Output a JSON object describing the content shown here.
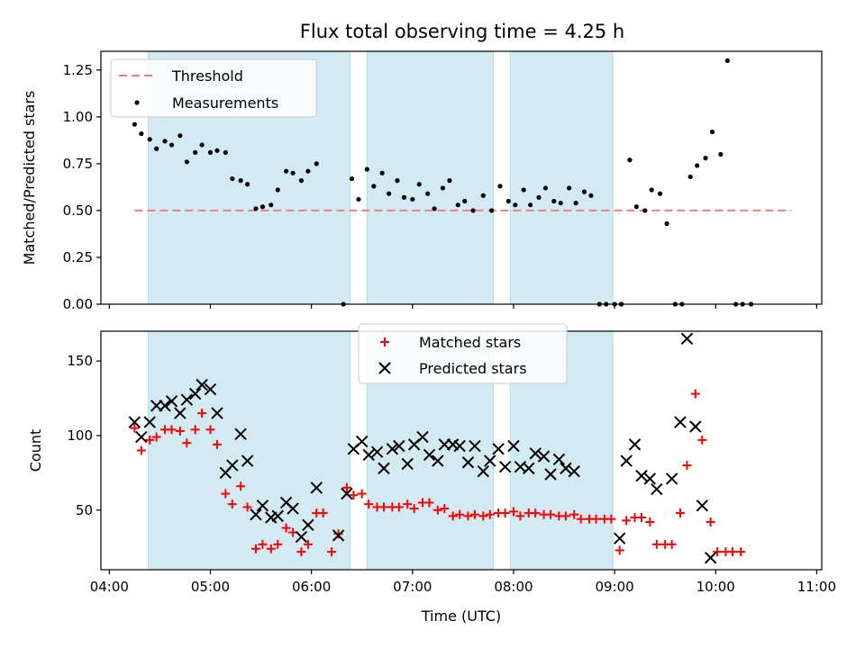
{
  "title": "Flux total observing time = 4.25 h",
  "chart_data": [
    {
      "type": "scatter",
      "ylabel": "Matched/Predicted stars",
      "ylim": [
        0,
        1.35
      ],
      "xlim": [
        "03:55",
        "11:03"
      ],
      "yticks": [
        {
          "v": 0,
          "label": "0.00"
        },
        {
          "v": 0.25,
          "label": "0.25"
        },
        {
          "v": 0.5,
          "label": "0.50"
        },
        {
          "v": 0.75,
          "label": "0.75"
        },
        {
          "v": 1.0,
          "label": "1.00"
        },
        {
          "v": 1.25,
          "label": "1.25"
        }
      ],
      "legend": [
        {
          "key": "threshold",
          "label": "Threshold"
        },
        {
          "key": "measurements",
          "label": "Measurements"
        }
      ],
      "legend_position": "upper left",
      "threshold": {
        "value": 0.5,
        "x_start": "04:15",
        "x_end": "10:45",
        "color": "#f08080"
      },
      "series": [
        {
          "key": "measurements",
          "color": "#000000",
          "points": [
            [
              "04:15",
              0.96
            ],
            [
              "04:19",
              0.91
            ],
            [
              "04:24",
              0.88
            ],
            [
              "04:28",
              0.83
            ],
            [
              "04:33",
              0.87
            ],
            [
              "04:37",
              0.85
            ],
            [
              "04:42",
              0.9
            ],
            [
              "04:46",
              0.76
            ],
            [
              "04:51",
              0.81
            ],
            [
              "04:55",
              0.85
            ],
            [
              "05:00",
              0.81
            ],
            [
              "05:04",
              0.82
            ],
            [
              "05:09",
              0.81
            ],
            [
              "05:13",
              0.67
            ],
            [
              "05:18",
              0.66
            ],
            [
              "05:22",
              0.64
            ],
            [
              "05:27",
              0.51
            ],
            [
              "05:31",
              0.52
            ],
            [
              "05:36",
              0.53
            ],
            [
              "05:40",
              0.61
            ],
            [
              "05:45",
              0.71
            ],
            [
              "05:49",
              0.7
            ],
            [
              "05:54",
              0.66
            ],
            [
              "05:58",
              0.71
            ],
            [
              "06:03",
              0.75
            ],
            [
              "06:19",
              0.0
            ],
            [
              "06:24",
              0.67
            ],
            [
              "06:28",
              0.56
            ],
            [
              "06:33",
              0.72
            ],
            [
              "06:37",
              0.63
            ],
            [
              "06:42",
              0.7
            ],
            [
              "06:46",
              0.59
            ],
            [
              "06:51",
              0.66
            ],
            [
              "06:55",
              0.57
            ],
            [
              "07:00",
              0.56
            ],
            [
              "07:04",
              0.64
            ],
            [
              "07:09",
              0.59
            ],
            [
              "07:13",
              0.51
            ],
            [
              "07:18",
              0.62
            ],
            [
              "07:22",
              0.66
            ],
            [
              "07:27",
              0.53
            ],
            [
              "07:31",
              0.55
            ],
            [
              "07:36",
              0.5
            ],
            [
              "07:42",
              0.58
            ],
            [
              "07:47",
              0.5
            ],
            [
              "07:52",
              0.63
            ],
            [
              "07:57",
              0.55
            ],
            [
              "08:01",
              0.53
            ],
            [
              "08:06",
              0.61
            ],
            [
              "08:10",
              0.53
            ],
            [
              "08:15",
              0.57
            ],
            [
              "08:19",
              0.62
            ],
            [
              "08:24",
              0.55
            ],
            [
              "08:28",
              0.54
            ],
            [
              "08:33",
              0.62
            ],
            [
              "08:37",
              0.54
            ],
            [
              "08:42",
              0.6
            ],
            [
              "08:46",
              0.58
            ],
            [
              "08:51",
              0.0
            ],
            [
              "08:55",
              0.0
            ],
            [
              "09:00",
              0.0
            ],
            [
              "09:04",
              0.0
            ],
            [
              "09:09",
              0.77
            ],
            [
              "09:13",
              0.52
            ],
            [
              "09:18",
              0.5
            ],
            [
              "09:22",
              0.61
            ],
            [
              "09:27",
              0.59
            ],
            [
              "09:31",
              0.43
            ],
            [
              "09:36",
              0.0
            ],
            [
              "09:40",
              0.0
            ],
            [
              "09:45",
              0.68
            ],
            [
              "09:49",
              0.74
            ],
            [
              "09:54",
              0.78
            ],
            [
              "09:58",
              0.92
            ],
            [
              "10:03",
              0.8
            ],
            [
              "10:07",
              1.3
            ],
            [
              "10:12",
              0.0
            ],
            [
              "10:16",
              0.0
            ],
            [
              "10:21",
              0.0
            ]
          ]
        }
      ],
      "shaded_intervals": [
        [
          "04:23",
          "06:23"
        ],
        [
          "06:33",
          "07:48"
        ],
        [
          "07:58",
          "08:59"
        ]
      ],
      "shade_color": "#add8e6"
    },
    {
      "type": "scatter",
      "xlabel": "Time (UTC)",
      "ylabel": "Count",
      "ylim": [
        10,
        170
      ],
      "xlim": [
        "03:55",
        "11:03"
      ],
      "xticks": [
        "04:00",
        "05:00",
        "06:00",
        "07:00",
        "08:00",
        "09:00",
        "10:00",
        "11:00"
      ],
      "yticks": [
        {
          "v": 50,
          "label": "50"
        },
        {
          "v": 100,
          "label": "100"
        },
        {
          "v": 150,
          "label": "150"
        }
      ],
      "legend": [
        {
          "key": "matched",
          "label": "Matched stars"
        },
        {
          "key": "predicted",
          "label": "Predicted stars"
        }
      ],
      "legend_position": "upper center",
      "series": [
        {
          "key": "matched",
          "marker": "plus",
          "color": "#ff0000",
          "points": [
            [
              "04:15",
              105
            ],
            [
              "04:19",
              90
            ],
            [
              "04:24",
              97
            ],
            [
              "04:28",
              99
            ],
            [
              "04:33",
              104
            ],
            [
              "04:37",
              104
            ],
            [
              "04:42",
              103
            ],
            [
              "04:46",
              95
            ],
            [
              "04:51",
              104
            ],
            [
              "04:55",
              115
            ],
            [
              "05:00",
              104
            ],
            [
              "05:04",
              94
            ],
            [
              "05:09",
              61
            ],
            [
              "05:13",
              54
            ],
            [
              "05:18",
              66
            ],
            [
              "05:22",
              52
            ],
            [
              "05:27",
              24
            ],
            [
              "05:31",
              27
            ],
            [
              "05:36",
              24
            ],
            [
              "05:40",
              27
            ],
            [
              "05:45",
              38
            ],
            [
              "05:49",
              35
            ],
            [
              "05:54",
              22
            ],
            [
              "05:58",
              27
            ],
            [
              "06:03",
              48
            ],
            [
              "06:07",
              48
            ],
            [
              "06:12",
              22
            ],
            [
              "06:16",
              34
            ],
            [
              "06:21",
              65
            ],
            [
              "06:25",
              60
            ],
            [
              "06:30",
              61
            ],
            [
              "06:34",
              54
            ],
            [
              "06:39",
              52
            ],
            [
              "06:43",
              52
            ],
            [
              "06:48",
              52
            ],
            [
              "06:52",
              52
            ],
            [
              "06:57",
              54
            ],
            [
              "07:01",
              51
            ],
            [
              "07:06",
              55
            ],
            [
              "07:10",
              55
            ],
            [
              "07:15",
              50
            ],
            [
              "07:19",
              51
            ],
            [
              "07:24",
              46
            ],
            [
              "07:28",
              47
            ],
            [
              "07:33",
              46
            ],
            [
              "07:37",
              47
            ],
            [
              "07:42",
              46
            ],
            [
              "07:46",
              47
            ],
            [
              "07:51",
              48
            ],
            [
              "07:55",
              48
            ],
            [
              "08:00",
              49
            ],
            [
              "08:04",
              46
            ],
            [
              "08:09",
              48
            ],
            [
              "08:13",
              48
            ],
            [
              "08:18",
              47
            ],
            [
              "08:22",
              47
            ],
            [
              "08:27",
              46
            ],
            [
              "08:31",
              46
            ],
            [
              "08:36",
              47
            ],
            [
              "08:40",
              44
            ],
            [
              "08:45",
              44
            ],
            [
              "08:49",
              44
            ],
            [
              "08:54",
              44
            ],
            [
              "08:58",
              44
            ],
            [
              "09:03",
              23
            ],
            [
              "09:07",
              43
            ],
            [
              "09:12",
              45
            ],
            [
              "09:16",
              45
            ],
            [
              "09:21",
              42
            ],
            [
              "09:25",
              27
            ],
            [
              "09:30",
              27
            ],
            [
              "09:34",
              27
            ],
            [
              "09:39",
              48
            ],
            [
              "09:43",
              80
            ],
            [
              "09:48",
              128
            ],
            [
              "09:52",
              97
            ],
            [
              "09:57",
              42
            ],
            [
              "10:01",
              22
            ],
            [
              "10:06",
              22
            ],
            [
              "10:10",
              22
            ],
            [
              "10:15",
              22
            ]
          ]
        },
        {
          "key": "predicted",
          "marker": "x",
          "color": "#000000",
          "points": [
            [
              "04:15",
              109
            ],
            [
              "04:19",
              99
            ],
            [
              "04:24",
              109
            ],
            [
              "04:28",
              120
            ],
            [
              "04:33",
              120
            ],
            [
              "04:37",
              123
            ],
            [
              "04:42",
              115
            ],
            [
              "04:46",
              124
            ],
            [
              "04:51",
              128
            ],
            [
              "04:55",
              134
            ],
            [
              "05:00",
              131
            ],
            [
              "05:04",
              115
            ],
            [
              "05:09",
              75
            ],
            [
              "05:13",
              80
            ],
            [
              "05:18",
              101
            ],
            [
              "05:22",
              83
            ],
            [
              "05:27",
              47
            ],
            [
              "05:31",
              53
            ],
            [
              "05:36",
              45
            ],
            [
              "05:40",
              46
            ],
            [
              "05:45",
              55
            ],
            [
              "05:49",
              51
            ],
            [
              "05:54",
              32
            ],
            [
              "05:58",
              40
            ],
            [
              "06:03",
              65
            ],
            [
              "06:16",
              33
            ],
            [
              "06:21",
              61
            ],
            [
              "06:25",
              91
            ],
            [
              "06:30",
              96
            ],
            [
              "06:34",
              87
            ],
            [
              "06:39",
              89
            ],
            [
              "06:43",
              78
            ],
            [
              "06:48",
              91
            ],
            [
              "06:52",
              93
            ],
            [
              "06:57",
              81
            ],
            [
              "07:01",
              94
            ],
            [
              "07:06",
              99
            ],
            [
              "07:10",
              87
            ],
            [
              "07:15",
              83
            ],
            [
              "07:19",
              94
            ],
            [
              "07:24",
              94
            ],
            [
              "07:28",
              93
            ],
            [
              "07:33",
              82
            ],
            [
              "07:37",
              93
            ],
            [
              "07:42",
              76
            ],
            [
              "07:46",
              83
            ],
            [
              "07:51",
              91
            ],
            [
              "07:55",
              79
            ],
            [
              "08:00",
              93
            ],
            [
              "08:04",
              79
            ],
            [
              "08:09",
              78
            ],
            [
              "08:13",
              88
            ],
            [
              "08:18",
              86
            ],
            [
              "08:22",
              74
            ],
            [
              "08:27",
              84
            ],
            [
              "08:31",
              78
            ],
            [
              "08:36",
              76
            ],
            [
              "09:03",
              31
            ],
            [
              "09:07",
              83
            ],
            [
              "09:12",
              94
            ],
            [
              "09:16",
              73
            ],
            [
              "09:21",
              71
            ],
            [
              "09:25",
              64
            ],
            [
              "09:34",
              71
            ],
            [
              "09:39",
              109
            ],
            [
              "09:43",
              165
            ],
            [
              "09:48",
              106
            ],
            [
              "09:52",
              53
            ],
            [
              "09:57",
              18
            ]
          ]
        }
      ],
      "shaded_intervals": [
        [
          "04:23",
          "06:23"
        ],
        [
          "06:33",
          "07:48"
        ],
        [
          "07:58",
          "08:59"
        ]
      ],
      "shade_color": "#add8e6"
    }
  ]
}
